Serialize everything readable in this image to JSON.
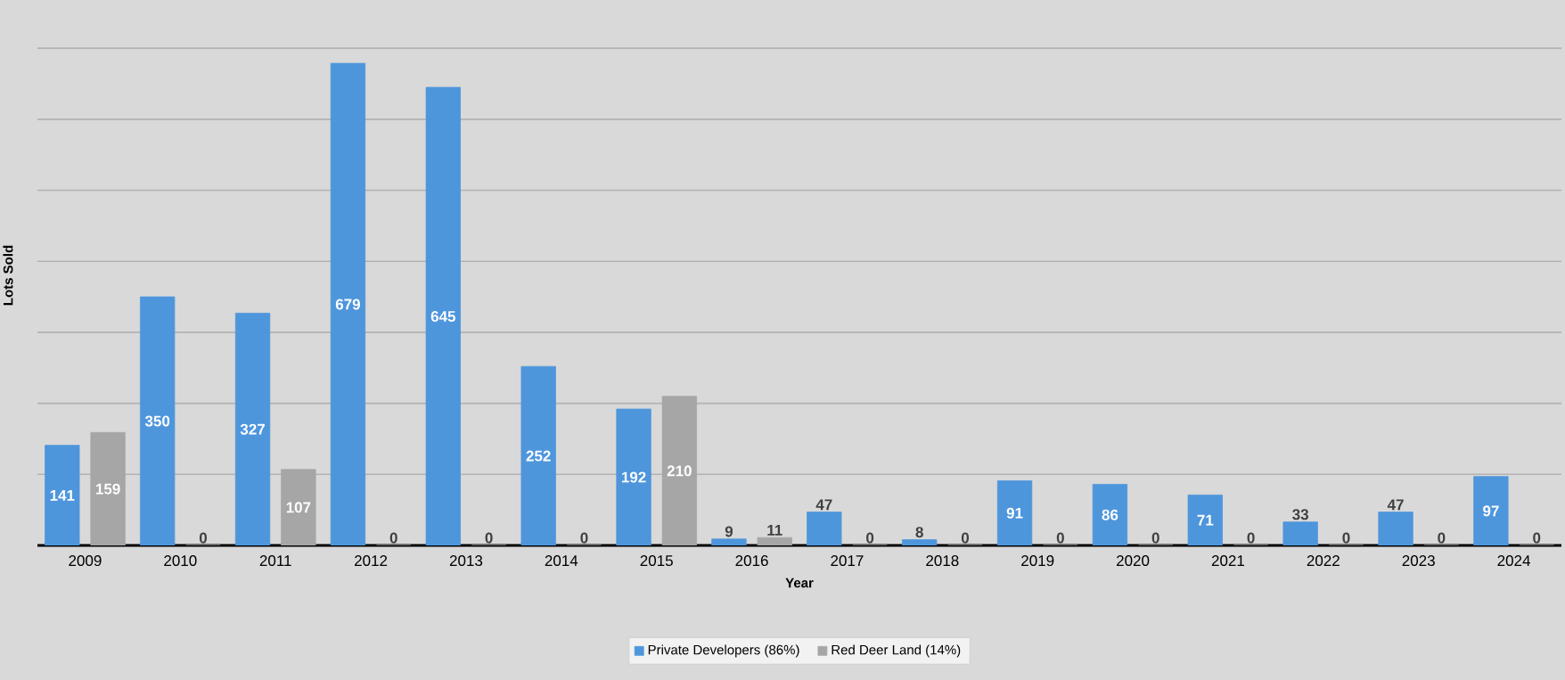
{
  "chart_data": {
    "type": "bar",
    "xlabel": "Year",
    "ylabel": "Lots Sold",
    "categories": [
      "2009",
      "2010",
      "2011",
      "2012",
      "2013",
      "2014",
      "2015",
      "2016",
      "2017",
      "2018",
      "2019",
      "2020",
      "2021",
      "2022",
      "2023",
      "2024"
    ],
    "series": [
      {
        "name": "Private Developers (86%)",
        "color": "#4e96dc",
        "values": [
          141,
          350,
          327,
          679,
          645,
          252,
          192,
          9,
          47,
          8,
          91,
          86,
          71,
          33,
          47,
          97
        ]
      },
      {
        "name": "Red Deer Land (14%)",
        "color": "#a6a6a6",
        "values": [
          159,
          0,
          107,
          0,
          0,
          0,
          210,
          11,
          0,
          0,
          0,
          0,
          0,
          0,
          0,
          0
        ]
      }
    ],
    "tick_labels": "x",
    "grid": "y",
    "legend": "bottom",
    "data_labels": true
  }
}
